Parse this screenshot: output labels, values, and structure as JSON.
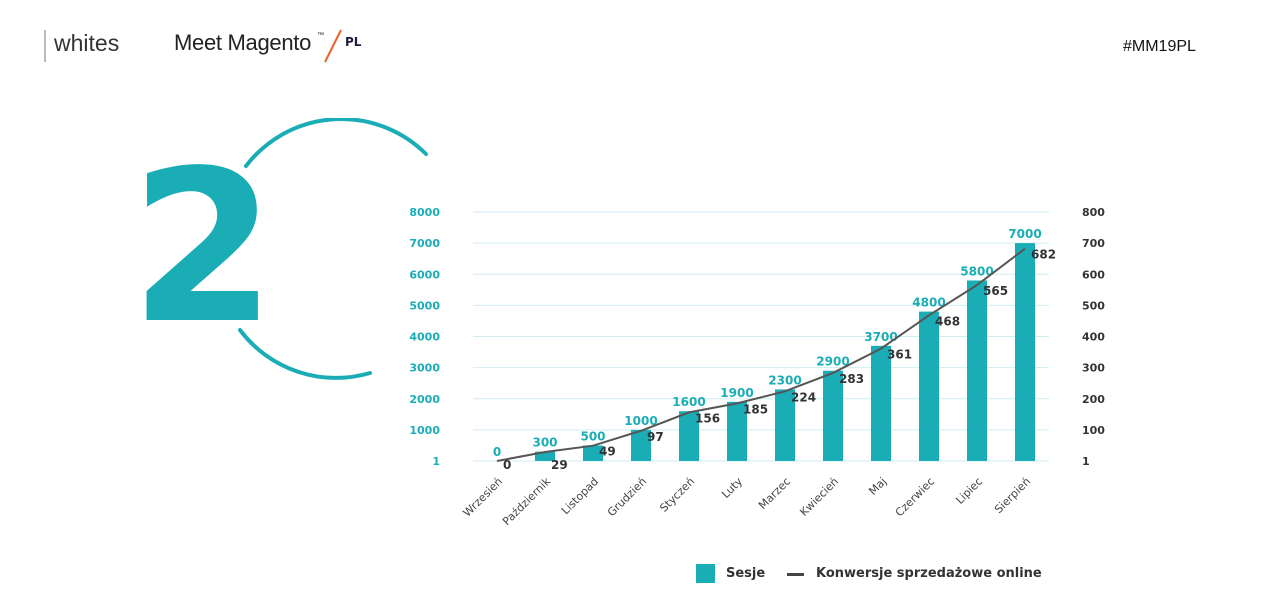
{
  "header": {
    "logo_text": "whites",
    "event_name": "Meet Magento",
    "event_tm": "™",
    "event_suffix": "PL",
    "hashtag": "#MM19PL"
  },
  "decoration": {
    "big_number": "2"
  },
  "colors": {
    "accent": "#1badb6",
    "line": "#555555",
    "grid": "#cfeef0",
    "label": "#333333"
  },
  "legend": {
    "series1": "Sesje",
    "series2": "Konwersje sprzedażowe online"
  },
  "chart_data": {
    "type": "bar",
    "categories": [
      "Wrzesień",
      "Październik",
      "Listopad",
      "Grudzień",
      "Styczeń",
      "Luty",
      "Marzec",
      "Kwiecień",
      "Maj",
      "Czerwiec",
      "Lipiec",
      "Sierpień"
    ],
    "series": [
      {
        "name": "Sesje",
        "type": "bar",
        "axis": "left",
        "values": [
          0,
          300,
          500,
          1000,
          1600,
          1900,
          2300,
          2900,
          3700,
          4800,
          5800,
          7000
        ]
      },
      {
        "name": "Konwersje sprzedażowe online",
        "type": "line",
        "axis": "right",
        "values": [
          0,
          29,
          49,
          97,
          156,
          185,
          224,
          283,
          361,
          468,
          565,
          682
        ]
      }
    ],
    "y_left": {
      "ticks": [
        "1",
        "1000",
        "2000",
        "3000",
        "4000",
        "5000",
        "6000",
        "7000",
        "8000"
      ],
      "ylim": [
        0,
        8000
      ]
    },
    "y_right": {
      "ticks": [
        "1",
        "100",
        "200",
        "300",
        "400",
        "500",
        "600",
        "700",
        "800"
      ],
      "ylim": [
        0,
        800
      ]
    },
    "grid": true,
    "legend_position": "bottom-right"
  }
}
